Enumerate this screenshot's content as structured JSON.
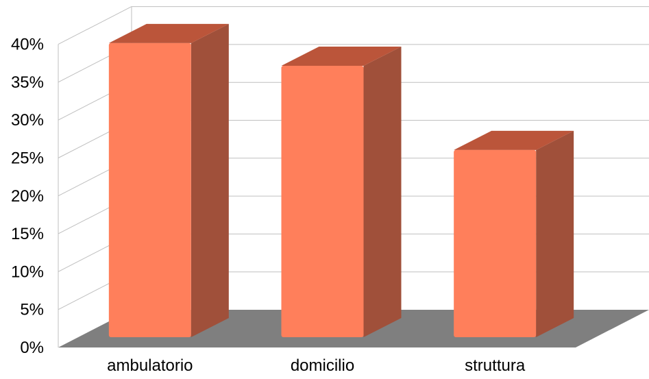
{
  "chart_data": {
    "type": "bar",
    "categories": [
      "ambulatorio",
      "domicilio",
      "struttura"
    ],
    "values": [
      38.8,
      35.8,
      24.7
    ],
    "title": "",
    "xlabel": "",
    "ylabel": "",
    "ylim": [
      0,
      40
    ],
    "yticks": [
      "0%",
      "5%",
      "10%",
      "15%",
      "20%",
      "25%",
      "30%",
      "35%",
      "40%"
    ],
    "grid": true,
    "legend": "none",
    "style": "3d-column",
    "colors": {
      "bar_front": "#FF7F5B",
      "bar_side": "#A0503A",
      "bar_top": "#BB553A",
      "floor": "#7F7F7F",
      "grid": "#BFBFBF"
    }
  }
}
